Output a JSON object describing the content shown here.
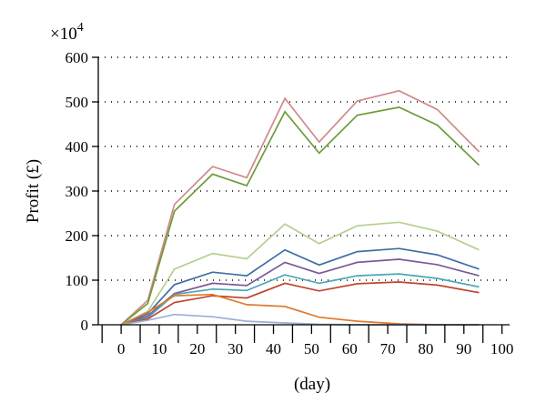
{
  "chart_data": {
    "type": "line",
    "xlabel": "(day)",
    "ylabel": "Profit (£)",
    "y_multiplier_label": "×10",
    "y_multiplier_exponent": "4",
    "xlim": [
      -6,
      102
    ],
    "ylim": [
      0,
      600
    ],
    "x_ticks": [
      0,
      10,
      20,
      30,
      40,
      50,
      60,
      70,
      80,
      90,
      100
    ],
    "y_ticks": [
      0,
      100,
      200,
      300,
      400,
      500,
      600
    ],
    "x_minor_ticks": [
      -5,
      5,
      15,
      25,
      35,
      45,
      55,
      65,
      75,
      85,
      95
    ],
    "grid": "horizontal dotted",
    "legend": "none",
    "x": [
      0,
      7,
      14,
      24,
      33,
      43,
      52,
      62,
      73,
      83,
      94
    ],
    "series": [
      {
        "color": "#d08a8a",
        "values": [
          0,
          55,
          270,
          355,
          330,
          508,
          410,
          502,
          525,
          483,
          388
        ]
      },
      {
        "color": "#6f9a3a",
        "values": [
          0,
          48,
          255,
          338,
          312,
          478,
          385,
          470,
          488,
          448,
          358
        ]
      },
      {
        "color": "#b5cf8f",
        "values": [
          0,
          30,
          125,
          160,
          148,
          226,
          182,
          222,
          230,
          210,
          168
        ]
      },
      {
        "color": "#3f6fa3",
        "values": [
          0,
          25,
          90,
          118,
          110,
          168,
          134,
          164,
          171,
          157,
          125
        ]
      },
      {
        "color": "#7a5a99",
        "values": [
          0,
          20,
          70,
          93,
          88,
          140,
          115,
          140,
          147,
          135,
          110
        ]
      },
      {
        "color": "#4aa6b5",
        "values": [
          0,
          16,
          68,
          80,
          77,
          112,
          93,
          110,
          114,
          104,
          85
        ]
      },
      {
        "color": "#c0442f",
        "values": [
          0,
          13,
          50,
          65,
          60,
          93,
          76,
          92,
          96,
          89,
          72
        ]
      },
      {
        "color": "#e07a2e",
        "values": [
          0,
          28,
          65,
          68,
          45,
          41,
          17,
          8,
          2,
          0,
          0
        ]
      },
      {
        "color": "#9ab0d4",
        "values": [
          0,
          10,
          23,
          18,
          8,
          4,
          1,
          0,
          0,
          0,
          0
        ]
      }
    ]
  }
}
